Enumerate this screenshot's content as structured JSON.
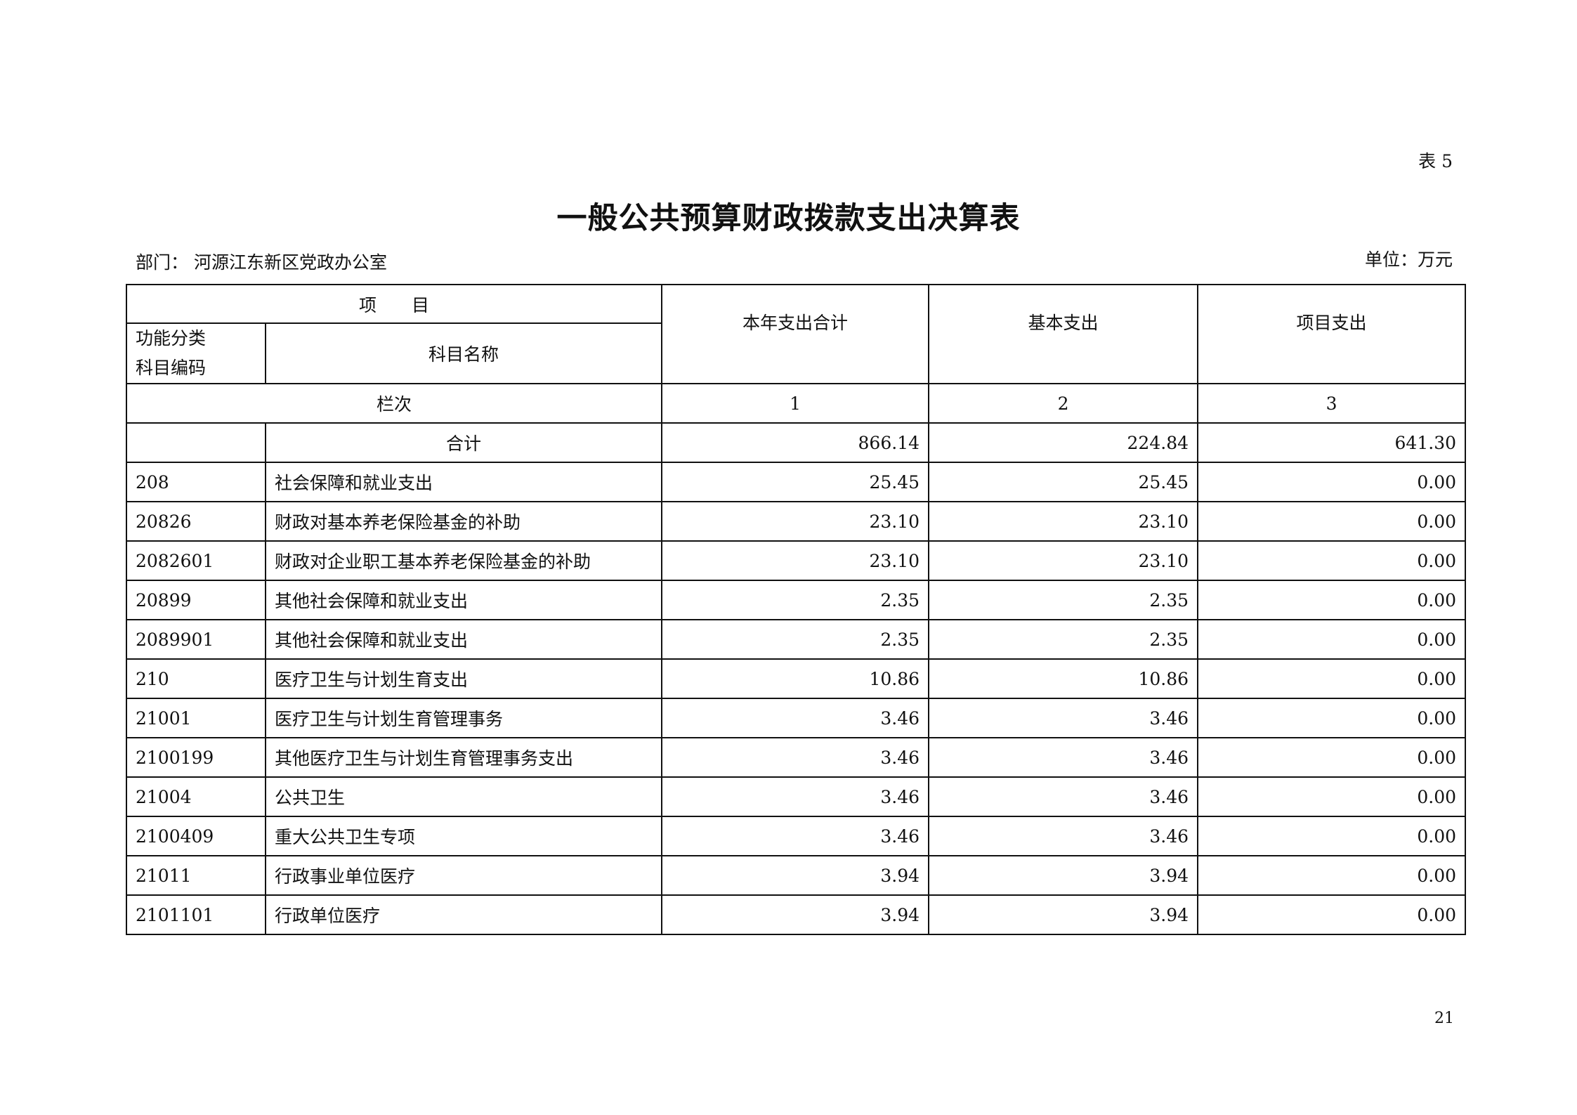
{
  "table_no": "表 5",
  "title": "一般公共预算财政拨款支出决算表",
  "department": "部门：  河源江东新区党政办公室",
  "unit": "单位：万元",
  "page_number": "21",
  "header": {
    "item": "项　　目",
    "code_line1": "功能分类",
    "code_line2": "科目编码",
    "name": "科目名称",
    "col1": "本年支出合计",
    "col2": "基本支出",
    "col3": "项目支出",
    "row_index_label": "栏次",
    "idx1": "1",
    "idx2": "2",
    "idx3": "3"
  },
  "total": {
    "label": "合计",
    "total": "866.14",
    "basic": "224.84",
    "project": "641.30"
  },
  "rows": [
    {
      "code": "208",
      "name": "社会保障和就业支出",
      "total": "25.45",
      "basic": "25.45",
      "project": "0.00"
    },
    {
      "code": "20826",
      "name": "财政对基本养老保险基金的补助",
      "total": "23.10",
      "basic": "23.10",
      "project": "0.00"
    },
    {
      "code": "2082601",
      "name": "财政对企业职工基本养老保险基金的补助",
      "total": "23.10",
      "basic": "23.10",
      "project": "0.00"
    },
    {
      "code": "20899",
      "name": "其他社会保障和就业支出",
      "total": "2.35",
      "basic": "2.35",
      "project": "0.00"
    },
    {
      "code": "2089901",
      "name": "其他社会保障和就业支出",
      "total": "2.35",
      "basic": "2.35",
      "project": "0.00"
    },
    {
      "code": "210",
      "name": "医疗卫生与计划生育支出",
      "total": "10.86",
      "basic": "10.86",
      "project": "0.00"
    },
    {
      "code": "21001",
      "name": "医疗卫生与计划生育管理事务",
      "total": "3.46",
      "basic": "3.46",
      "project": "0.00"
    },
    {
      "code": "2100199",
      "name": "其他医疗卫生与计划生育管理事务支出",
      "total": "3.46",
      "basic": "3.46",
      "project": "0.00"
    },
    {
      "code": "21004",
      "name": "公共卫生",
      "total": "3.46",
      "basic": "3.46",
      "project": "0.00"
    },
    {
      "code": "2100409",
      "name": "重大公共卫生专项",
      "total": "3.46",
      "basic": "3.46",
      "project": "0.00"
    },
    {
      "code": "21011",
      "name": "行政事业单位医疗",
      "total": "3.94",
      "basic": "3.94",
      "project": "0.00"
    },
    {
      "code": "2101101",
      "name": "行政单位医疗",
      "total": "3.94",
      "basic": "3.94",
      "project": "0.00"
    }
  ]
}
